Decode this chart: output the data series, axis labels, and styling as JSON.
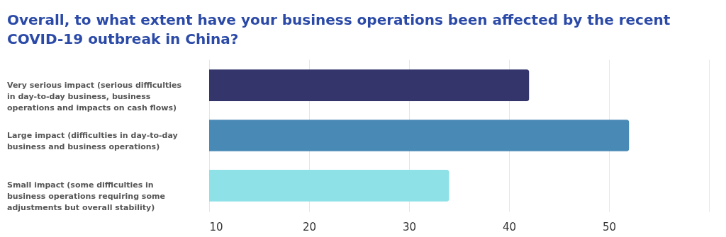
{
  "chart_data": {
    "type": "bar",
    "orientation": "horizontal",
    "title": "Overall, to what extent have your business operations been affected by the recent COVID-19 outbreak in China?",
    "categories": [
      "Very serious impact (serious difficulties in day-to-day business, business operations and impacts on cash flows)",
      "Large impact (difficulties in day-to-day business and business operations)",
      "Small impact (some difficulties in business operations requiring some adjustments but overall stability)"
    ],
    "values": [
      42,
      52,
      34
    ],
    "colors": [
      "#33356b",
      "#4989b6",
      "#8ee1e7"
    ],
    "xlim": [
      10,
      60
    ],
    "xticks": [
      10,
      20,
      30,
      40,
      50,
      {
        "value": 60,
        "label": null
      }
    ],
    "grid": "x"
  }
}
